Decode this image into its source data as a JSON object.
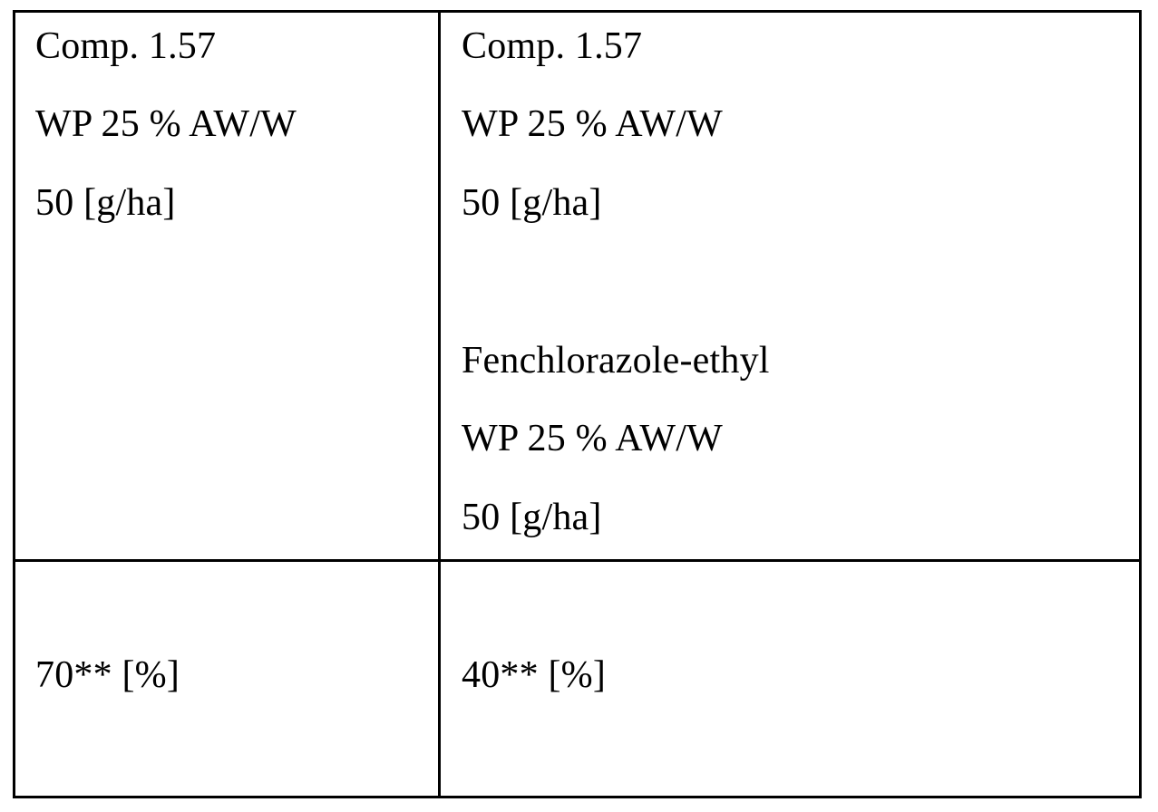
{
  "table": {
    "row1": {
      "left": {
        "line1": "Comp. 1.57",
        "line2": "WP 25 % AW/W",
        "line3": "50 [g/ha]"
      },
      "right": {
        "line1": "Comp. 1.57",
        "line2": "WP 25 % AW/W",
        "line3": "50 [g/ha]",
        "line4": "Fenchlorazole-ethyl",
        "line5": "WP 25 % AW/W",
        "line6": "50 [g/ha]"
      }
    },
    "row2": {
      "left": "70** [%]",
      "right": "40** [%]"
    }
  }
}
